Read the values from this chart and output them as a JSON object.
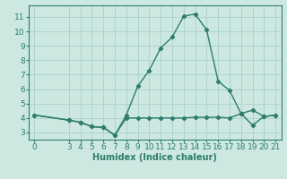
{
  "line1_x": [
    0,
    3,
    4,
    5,
    6,
    7,
    8,
    9,
    10,
    11,
    12,
    13,
    14,
    15,
    16,
    17,
    18,
    19,
    20,
    21
  ],
  "line1_y": [
    4.2,
    3.85,
    3.7,
    3.4,
    3.35,
    2.8,
    4.2,
    6.2,
    7.3,
    8.85,
    9.6,
    11.05,
    11.2,
    10.1,
    6.55,
    5.9,
    4.3,
    4.55,
    4.1,
    4.2
  ],
  "line2_x": [
    0,
    3,
    4,
    5,
    6,
    7,
    8,
    9,
    10,
    11,
    12,
    13,
    14,
    15,
    16,
    17,
    18,
    19,
    20,
    21
  ],
  "line2_y": [
    4.2,
    3.85,
    3.7,
    3.4,
    3.35,
    2.8,
    4.0,
    4.0,
    4.0,
    4.0,
    4.0,
    4.0,
    4.05,
    4.05,
    4.05,
    4.0,
    4.3,
    3.5,
    4.1,
    4.2
  ],
  "line_color": "#2e7d6e",
  "bg_color": "#cce8e0",
  "grid_color": "#aed4cc",
  "xlabel": "Humidex (Indice chaleur)",
  "xlim": [
    -0.5,
    21.5
  ],
  "ylim": [
    2.5,
    11.8
  ],
  "yticks": [
    3,
    4,
    5,
    6,
    7,
    8,
    9,
    10,
    11
  ],
  "xticks": [
    0,
    3,
    4,
    5,
    6,
    7,
    8,
    9,
    10,
    11,
    12,
    13,
    14,
    15,
    16,
    17,
    18,
    19,
    20,
    21
  ],
  "marker": "D",
  "markersize": 2.2,
  "linewidth": 1.0,
  "xlabel_fontsize": 7,
  "tick_fontsize": 6.5
}
